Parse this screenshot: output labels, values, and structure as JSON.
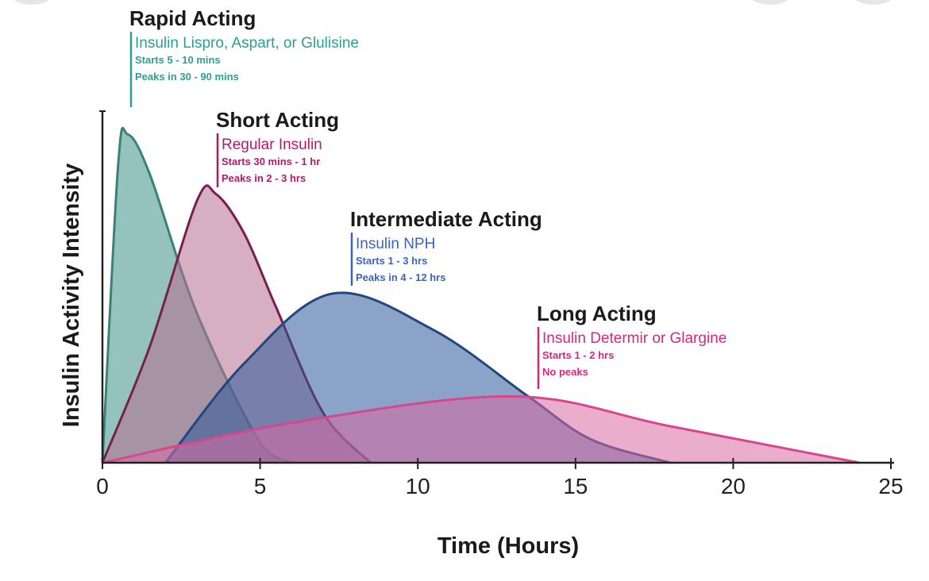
{
  "chart_data": {
    "type": "area",
    "title": "",
    "xlabel": "Time (Hours)",
    "ylabel": "Insulin Activity Intensity",
    "xlim": [
      0,
      25
    ],
    "x_ticks": [
      0,
      5,
      10,
      15,
      20,
      25
    ],
    "ylim": [
      0,
      1
    ],
    "grid": false,
    "series": [
      {
        "name": "Rapid Acting",
        "drug": "Insulin Lispro, Aspart, or Glulisine",
        "onset": "Starts 5 - 10 mins",
        "peak": "Peaks in  30 - 90 mins",
        "color": "#3d8f85",
        "line_color": "#3d8075",
        "text_color": "#2c9e92",
        "x": [
          0,
          0.5,
          0.8,
          1.5,
          3,
          5,
          6
        ],
        "y": [
          0,
          0.9,
          0.99,
          0.87,
          0.45,
          0.06,
          0
        ]
      },
      {
        "name": "Short Acting",
        "drug": "Regular Insulin",
        "onset": "Starts 30 mins - 1 hr",
        "peak": "Peaks in  2 - 3 hrs",
        "color": "#b5708f",
        "line_color": "#7a1f4d",
        "text_color": "#b5186b",
        "x": [
          0,
          1.5,
          3,
          3.6,
          4.5,
          5.5,
          7,
          8.5
        ],
        "y": [
          0,
          0.35,
          0.79,
          0.81,
          0.69,
          0.47,
          0.15,
          0
        ]
      },
      {
        "name": "Intermediate Acting",
        "drug": "Insulin NPH",
        "onset": "Starts 1 - 3 hrs",
        "peak": "Peaks in 4 - 12 hrs",
        "color": "#2b5797",
        "line_color": "#23467d",
        "text_color": "#3a64c0",
        "x": [
          2,
          4.5,
          7.3,
          10.5,
          13.5,
          15.5,
          18
        ],
        "y": [
          0,
          0.3,
          0.51,
          0.4,
          0.2,
          0.07,
          0
        ]
      },
      {
        "name": "Long Acting",
        "drug": "Insulin Determir or Glargine",
        "onset": "Starts 1 - 2 hrs",
        "peak": "No peaks",
        "color": "#d96aa3",
        "line_color": "#d6478f",
        "text_color": "#d6287a",
        "x": [
          0,
          6,
          13,
          18,
          24
        ],
        "y": [
          0,
          0.12,
          0.2,
          0.11,
          0
        ]
      }
    ]
  }
}
